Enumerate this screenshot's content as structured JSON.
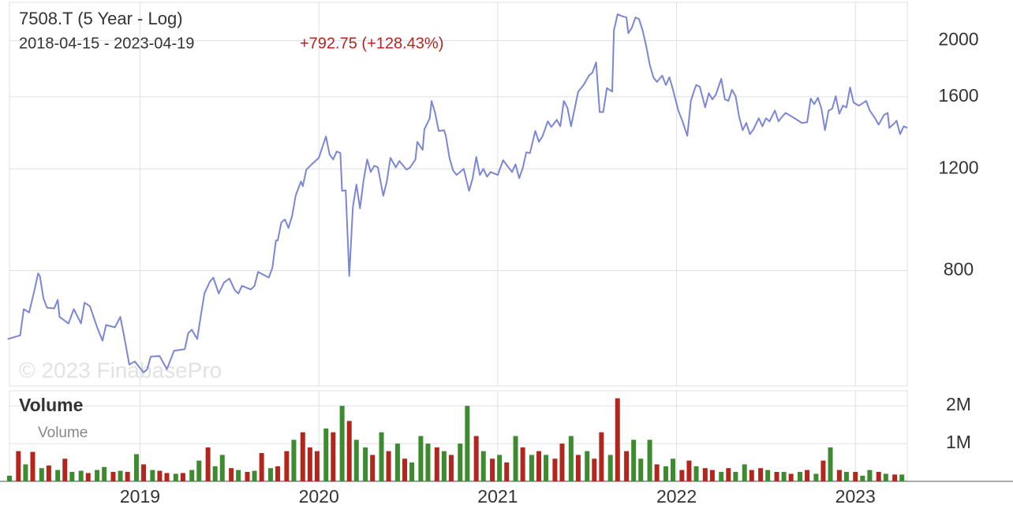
{
  "chart_data": [
    {
      "type": "line",
      "title": "7508.T (5 Year - Log)",
      "subtitle": "2018-04-15 - 2023-04-19",
      "change": "+792.75 (+128.43%)",
      "change_color": "#b3261e",
      "watermark": "© 2023 FinabasePro",
      "color": "#7b86d6",
      "log_scale": true,
      "grid": true,
      "xlim": [
        2018.27,
        2023.29
      ],
      "xticks": [
        2019,
        2020,
        2021,
        2022,
        2023
      ],
      "ylim": [
        505,
        2330
      ],
      "yticks": [
        800,
        1200,
        1600,
        2000
      ],
      "x": [
        2018.26,
        2018.33,
        2018.35,
        2018.38,
        2018.41,
        2018.43,
        2018.44,
        2018.46,
        2018.48,
        2018.52,
        2018.54,
        2018.55,
        2018.6,
        2018.63,
        2018.67,
        2018.69,
        2018.72,
        2018.76,
        2018.79,
        2018.81,
        2018.86,
        2018.89,
        2018.91,
        2018.94,
        2018.97,
        2019.02,
        2019.04,
        2019.06,
        2019.11,
        2019.15,
        2019.19,
        2019.25,
        2019.27,
        2019.29,
        2019.32,
        2019.34,
        2019.36,
        2019.39,
        2019.41,
        2019.44,
        2019.47,
        2019.5,
        2019.53,
        2019.55,
        2019.57,
        2019.62,
        2019.64,
        2019.66,
        2019.72,
        2019.74,
        2019.76,
        2019.77,
        2019.79,
        2019.81,
        2019.83,
        2019.85,
        2019.87,
        2019.9,
        2019.91,
        2019.93,
        2019.96,
        2020.0,
        2020.02,
        2020.04,
        2020.06,
        2020.08,
        2020.1,
        2020.12,
        2020.13,
        2020.15,
        2020.17,
        2020.19,
        2020.21,
        2020.23,
        2020.25,
        2020.27,
        2020.29,
        2020.31,
        2020.33,
        2020.36,
        2020.38,
        2020.4,
        2020.43,
        2020.45,
        2020.49,
        2020.51,
        2020.54,
        2020.55,
        2020.58,
        2020.59,
        2020.62,
        2020.63,
        2020.65,
        2020.67,
        2020.7,
        2020.71,
        2020.73,
        2020.75,
        2020.77,
        2020.81,
        2020.84,
        2020.86,
        2020.88,
        2020.9,
        2020.92,
        2020.94,
        2020.96,
        2021.0,
        2021.03,
        2021.08,
        2021.1,
        2021.12,
        2021.14,
        2021.16,
        2021.18,
        2021.21,
        2021.23,
        2021.25,
        2021.28,
        2021.3,
        2021.33,
        2021.35,
        2021.37,
        2021.39,
        2021.41,
        2021.43,
        2021.45,
        2021.48,
        2021.51,
        2021.53,
        2021.55,
        2021.57,
        2021.59,
        2021.61,
        2021.64,
        2021.65,
        2021.67,
        2021.69,
        2021.72,
        2021.73,
        2021.75,
        2021.77,
        2021.79,
        2021.81,
        2021.83,
        2021.85,
        2021.87,
        2021.89,
        2021.92,
        2021.94,
        2021.96,
        2021.98,
        2022.01,
        2022.03,
        2022.06,
        2022.08,
        2022.1,
        2022.11,
        2022.13,
        2022.16,
        2022.18,
        2022.2,
        2022.22,
        2022.25,
        2022.27,
        2022.29,
        2022.31,
        2022.33,
        2022.35,
        2022.37,
        2022.39,
        2022.41,
        2022.43,
        2022.46,
        2022.48,
        2022.5,
        2022.52,
        2022.55,
        2022.57,
        2022.59,
        2022.61,
        2022.66,
        2022.7,
        2022.73,
        2022.75,
        2022.77,
        2022.79,
        2022.81,
        2022.83,
        2022.85,
        2022.87,
        2022.89,
        2022.91,
        2022.93,
        2022.95,
        2022.97,
        2022.99,
        2023.02,
        2023.06,
        2023.08,
        2023.11,
        2023.13,
        2023.16,
        2023.18,
        2023.19,
        2023.22,
        2023.23,
        2023.25,
        2023.27,
        2023.29
      ],
      "values": [
        609,
        618,
        686,
        677,
        740,
        791,
        783,
        716,
        690,
        688,
        712,
        665,
        648,
        686,
        648,
        704,
        694,
        638,
        605,
        644,
        638,
        665,
        618,
        550,
        557,
        533,
        540,
        568,
        569,
        540,
        581,
        585,
        624,
        632,
        609,
        669,
        730,
        765,
        778,
        730,
        763,
        775,
        740,
        730,
        753,
        742,
        753,
        796,
        778,
        808,
        902,
        902,
        969,
        981,
        948,
        994,
        1078,
        1141,
        1120,
        1196,
        1222,
        1254,
        1310,
        1365,
        1270,
        1246,
        1286,
        1278,
        1099,
        1102,
        783,
        1031,
        1127,
        1025,
        1148,
        1246,
        1185,
        1215,
        1207,
        1078,
        1141,
        1254,
        1207,
        1238,
        1196,
        1207,
        1246,
        1336,
        1294,
        1404,
        1468,
        1573,
        1500,
        1396,
        1400,
        1369,
        1254,
        1193,
        1171,
        1200,
        1099,
        1156,
        1258,
        1171,
        1200,
        1163,
        1185,
        1171,
        1242,
        1185,
        1222,
        1156,
        1204,
        1282,
        1278,
        1396,
        1336,
        1365,
        1450,
        1418,
        1459,
        1422,
        1573,
        1530,
        1422,
        1525,
        1633,
        1676,
        1740,
        1762,
        1835,
        1505,
        1505,
        1655,
        1633,
        2085,
        2222,
        2208,
        2194,
        2060,
        2106,
        2194,
        2180,
        2085,
        1960,
        1818,
        1729,
        1697,
        1740,
        1676,
        1729,
        1645,
        1514,
        1459,
        1369,
        1573,
        1645,
        1676,
        1665,
        1533,
        1623,
        1583,
        1613,
        1718,
        1583,
        1573,
        1645,
        1603,
        1477,
        1400,
        1441,
        1378,
        1404,
        1468,
        1422,
        1468,
        1450,
        1514,
        1450,
        1477,
        1500,
        1468,
        1441,
        1445,
        1588,
        1553,
        1593,
        1525,
        1400,
        1514,
        1525,
        1603,
        1495,
        1544,
        1533,
        1660,
        1563,
        1544,
        1573,
        1514,
        1468,
        1431,
        1487,
        1500,
        1413,
        1441,
        1454,
        1378,
        1422,
        1413
      ]
    },
    {
      "type": "bar",
      "title": "Volume",
      "grid": true,
      "xlim": [
        2018.27,
        2023.29
      ],
      "xticks": [
        2019,
        2020,
        2021,
        2022,
        2023
      ],
      "ylim": [
        0,
        2400000
      ],
      "yticks": [
        {
          "value": 1000000,
          "label": "1M"
        },
        {
          "value": 2000000,
          "label": "2M"
        }
      ],
      "x": [
        2018.27,
        2018.32,
        2018.36,
        2018.4,
        2018.45,
        2018.49,
        2018.54,
        2018.58,
        2018.62,
        2018.67,
        2018.71,
        2018.76,
        2018.8,
        2018.85,
        2018.89,
        2018.93,
        2018.98,
        2019.02,
        2019.07,
        2019.11,
        2019.15,
        2019.2,
        2019.24,
        2019.29,
        2019.33,
        2019.38,
        2019.42,
        2019.46,
        2019.51,
        2019.55,
        2019.6,
        2019.64,
        2019.68,
        2019.73,
        2019.77,
        2019.82,
        2019.86,
        2019.91,
        2019.95,
        2019.99,
        2020.04,
        2020.08,
        2020.13,
        2020.17,
        2020.21,
        2020.26,
        2020.3,
        2020.35,
        2020.39,
        2020.44,
        2020.48,
        2020.52,
        2020.57,
        2020.61,
        2020.66,
        2020.7,
        2020.74,
        2020.79,
        2020.83,
        2020.88,
        2020.92,
        2020.97,
        2021.01,
        2021.05,
        2021.1,
        2021.14,
        2021.19,
        2021.23,
        2021.27,
        2021.32,
        2021.36,
        2021.41,
        2021.45,
        2021.5,
        2021.54,
        2021.58,
        2021.63,
        2021.67,
        2021.72,
        2021.76,
        2021.8,
        2021.85,
        2021.89,
        2021.94,
        2021.98,
        2022.03,
        2022.07,
        2022.11,
        2022.16,
        2022.2,
        2022.25,
        2022.29,
        2022.33,
        2022.38,
        2022.42,
        2022.47,
        2022.51,
        2022.56,
        2022.6,
        2022.64,
        2022.69,
        2022.73,
        2022.78,
        2022.82,
        2022.86,
        2022.91,
        2022.95,
        2023.0,
        2023.04,
        2023.08,
        2023.13,
        2023.17,
        2023.22,
        2023.26
      ],
      "series": [
        {
          "name": "Volume",
          "values": [
            150000,
            800000,
            450000,
            780000,
            350000,
            420000,
            300000,
            600000,
            250000,
            280000,
            220000,
            300000,
            380000,
            250000,
            280000,
            250000,
            720000,
            450000,
            300000,
            280000,
            220000,
            200000,
            220000,
            300000,
            550000,
            900000,
            400000,
            700000,
            350000,
            300000,
            250000,
            280000,
            750000,
            350000,
            400000,
            800000,
            1100000,
            1300000,
            900000,
            800000,
            1400000,
            1300000,
            2000000,
            1600000,
            1100000,
            900000,
            700000,
            1300000,
            800000,
            1000000,
            600000,
            500000,
            1200000,
            1000000,
            900000,
            800000,
            700000,
            1000000,
            2000000,
            1200000,
            800000,
            600000,
            700000,
            500000,
            1200000,
            900000,
            700000,
            800000,
            700000,
            600000,
            1000000,
            1200000,
            700000,
            800000,
            600000,
            1300000,
            700000,
            2200000,
            800000,
            1100000,
            600000,
            1100000,
            450000,
            400000,
            600000,
            300000,
            550000,
            400000,
            350000,
            300000,
            250000,
            350000,
            250000,
            450000,
            300000,
            350000,
            300000,
            250000,
            250000,
            200000,
            250000,
            300000,
            200000,
            550000,
            900000,
            300000,
            250000,
            250000,
            150000,
            300000,
            250000,
            200000,
            180000,
            180000
          ],
          "colors": [
            "#3d8b2f",
            "#b3261e",
            "#3d8b2f",
            "#b3261e",
            "#3d8b2f",
            "#b3261e",
            "#3d8b2f",
            "#b3261e",
            "#3d8b2f",
            "#3d8b2f",
            "#b3261e",
            "#3d8b2f",
            "#3d8b2f",
            "#b3261e",
            "#3d8b2f",
            "#b3261e",
            "#3d8b2f",
            "#b3261e",
            "#3d8b2f",
            "#b3261e",
            "#b3261e",
            "#3d8b2f",
            "#b3261e",
            "#3d8b2f",
            "#3d8b2f",
            "#b3261e",
            "#3d8b2f",
            "#3d8b2f",
            "#b3261e",
            "#3d8b2f",
            "#b3261e",
            "#3d8b2f",
            "#b3261e",
            "#3d8b2f",
            "#b3261e",
            "#b3261e",
            "#3d8b2f",
            "#b3261e",
            "#b3261e",
            "#b3261e",
            "#3d8b2f",
            "#b3261e",
            "#3d8b2f",
            "#b3261e",
            "#3d8b2f",
            "#3d8b2f",
            "#b3261e",
            "#3d8b2f",
            "#b3261e",
            "#3d8b2f",
            "#b3261e",
            "#3d8b2f",
            "#3d8b2f",
            "#3d8b2f",
            "#b3261e",
            "#3d8b2f",
            "#b3261e",
            "#3d8b2f",
            "#3d8b2f",
            "#b3261e",
            "#3d8b2f",
            "#b3261e",
            "#3d8b2f",
            "#b3261e",
            "#3d8b2f",
            "#b3261e",
            "#3d8b2f",
            "#b3261e",
            "#3d8b2f",
            "#b3261e",
            "#b3261e",
            "#3d8b2f",
            "#b3261e",
            "#3d8b2f",
            "#b3261e",
            "#b3261e",
            "#3d8b2f",
            "#b3261e",
            "#b3261e",
            "#3d8b2f",
            "#3d8b2f",
            "#3d8b2f",
            "#b3261e",
            "#3d8b2f",
            "#3d8b2f",
            "#b3261e",
            "#b3261e",
            "#3d8b2f",
            "#b3261e",
            "#b3261e",
            "#3d8b2f",
            "#b3261e",
            "#3d8b2f",
            "#3d8b2f",
            "#b3261e",
            "#b3261e",
            "#3d8b2f",
            "#b3261e",
            "#3d8b2f",
            "#b3261e",
            "#3d8b2f",
            "#b3261e",
            "#3d8b2f",
            "#b3261e",
            "#3d8b2f",
            "#b3261e",
            "#3d8b2f",
            "#b3261e",
            "#3d8b2f",
            "#3d8b2f",
            "#b3261e",
            "#3d8b2f",
            "#b3261e",
            "#3d8b2f"
          ]
        }
      ]
    }
  ]
}
